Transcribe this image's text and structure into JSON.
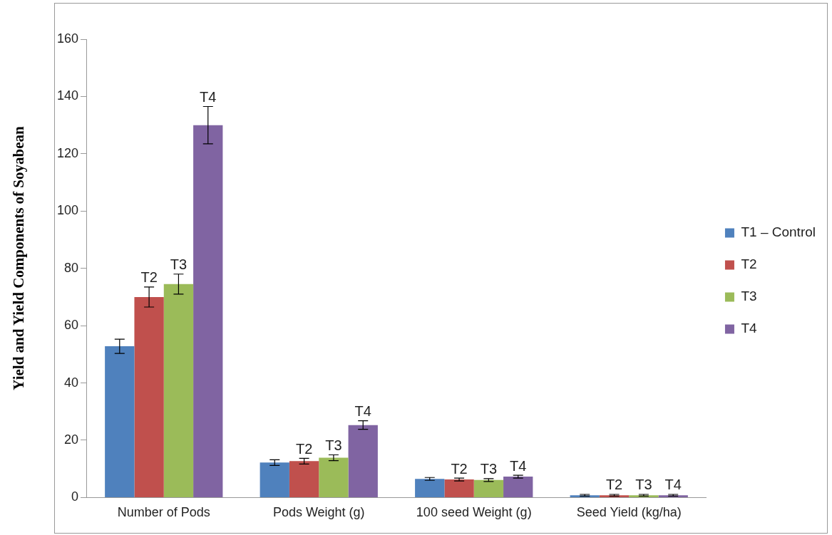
{
  "chart_data": {
    "type": "bar",
    "ylabel": "Yield and Yield Components of Soyabean",
    "categories": [
      "Number of Pods",
      "Pods Weight (g)",
      "100 seed Weight (g)",
      "Seed Yield (kg/ha)"
    ],
    "series": [
      {
        "name": "T1 – Control",
        "color": "#4f81bd",
        "values": [
          52.8,
          12.2,
          6.5,
          0.8
        ],
        "errors": [
          2.5,
          1,
          0.5,
          0.3
        ]
      },
      {
        "name": "T2",
        "color": "#c0504d",
        "values": [
          70,
          12.7,
          6.3,
          0.8
        ],
        "errors": [
          3.5,
          1,
          0.5,
          0.3
        ],
        "value_labels": [
          "T2",
          "T2",
          "T2",
          "T2"
        ]
      },
      {
        "name": "T3",
        "color": "#9bbb59",
        "values": [
          74.5,
          13.9,
          6.1,
          0.8
        ],
        "errors": [
          3.5,
          1,
          0.5,
          0.3
        ],
        "value_labels": [
          "T3",
          "T3",
          "T3",
          "T3"
        ]
      },
      {
        "name": "T4",
        "color": "#8064a2",
        "values": [
          130,
          25.3,
          7.3,
          0.8
        ],
        "errors": [
          6.5,
          1.5,
          0.5,
          0.3
        ],
        "value_labels": [
          "T4",
          "T4",
          "T4",
          "T4"
        ]
      }
    ],
    "ylim": [
      0,
      160
    ],
    "yticks": [
      0,
      20,
      40,
      60,
      80,
      100,
      120,
      140,
      160
    ],
    "grid": false,
    "legend": "right"
  }
}
